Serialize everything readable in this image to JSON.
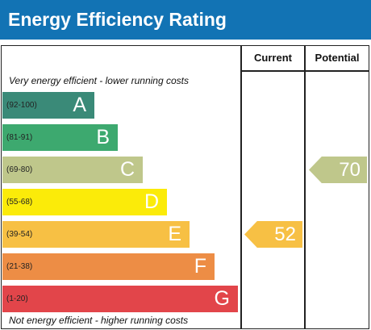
{
  "title": "Energy Efficiency Rating",
  "columns": {
    "current": "Current",
    "potential": "Potential"
  },
  "notes": {
    "top": "Very energy efficient - lower running costs",
    "bottom": "Not energy efficient - higher running costs"
  },
  "chart_data": {
    "type": "bar",
    "bands": [
      {
        "range": "(92-100)",
        "letter": "A",
        "color": "#3a8a78"
      },
      {
        "range": "(81-91)",
        "letter": "B",
        "color": "#3da96f"
      },
      {
        "range": "(69-80)",
        "letter": "C",
        "color": "#bfc78b"
      },
      {
        "range": "(55-68)",
        "letter": "D",
        "color": "#fbeb09"
      },
      {
        "range": "(39-54)",
        "letter": "E",
        "color": "#f7c044"
      },
      {
        "range": "(21-38)",
        "letter": "F",
        "color": "#ed8d45"
      },
      {
        "range": "(1-20)",
        "letter": "G",
        "color": "#e2454a"
      }
    ],
    "current": {
      "value": 52,
      "band": "E",
      "color": "#f7c044"
    },
    "potential": {
      "value": 70,
      "band": "C",
      "color": "#bfc78b"
    }
  }
}
